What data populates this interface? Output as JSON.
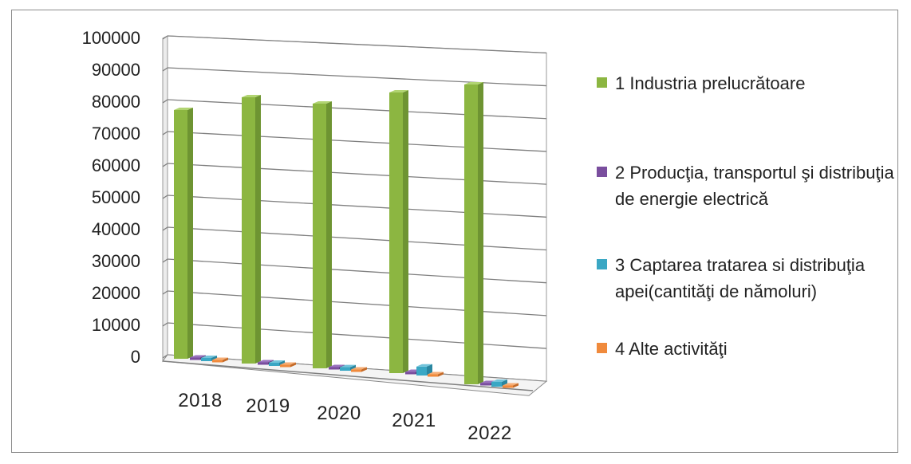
{
  "chart_data": {
    "type": "bar",
    "subtype": "3d-clustered-column",
    "categories": [
      "2018",
      "2019",
      "2020",
      "2021",
      "2022"
    ],
    "series": [
      {
        "name": "1 Industria prelucrătoare",
        "color": "#8cb641",
        "values": [
          78000,
          83500,
          83000,
          88000,
          94000
        ]
      },
      {
        "name": "2 Producţia, transportul şi distribuţia de energie electrică",
        "color": "#7a4e9e",
        "values": [
          300,
          250,
          250,
          300,
          250
        ]
      },
      {
        "name": "3 Captarea tratarea si distribuţia apei(cantităţi de nămoluri)",
        "color": "#3aa7c4",
        "values": [
          1000,
          1000,
          1100,
          2800,
          1500
        ]
      },
      {
        "name": "4 Alte activităţi",
        "color": "#f08a3c",
        "values": [
          400,
          350,
          300,
          400,
          300
        ]
      }
    ],
    "ylim": [
      0,
      100000
    ],
    "yticks": [
      "0",
      "10000",
      "20000",
      "30000",
      "40000",
      "50000",
      "60000",
      "70000",
      "80000",
      "90000",
      "100000"
    ],
    "grid": true,
    "legend": "right"
  }
}
